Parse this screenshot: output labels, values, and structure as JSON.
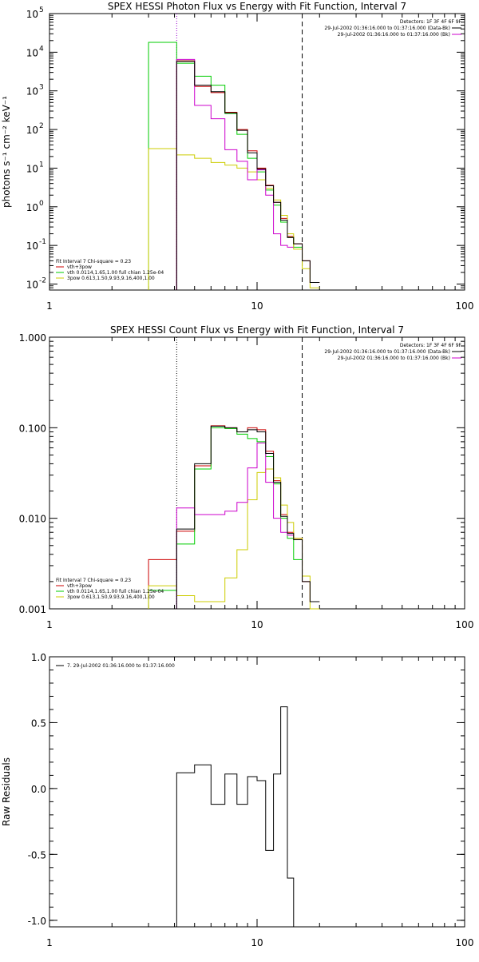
{
  "chart_data": [
    {
      "type": "line",
      "title": "SPEX HESSI Photon Flux vs Energy with Fit Function, Interval 7",
      "xlabel": "",
      "ylabel": "photons s⁻¹ cm⁻² keV⁻¹",
      "x_scale": "log",
      "y_scale": "log",
      "xlim": [
        1,
        100
      ],
      "ylim": [
        0.007,
        100000
      ],
      "x_ticks": [
        {
          "v": 1,
          "label": "1"
        },
        {
          "v": 10,
          "label": "10"
        },
        {
          "v": 100,
          "label": "100"
        }
      ],
      "y_ticks": [
        {
          "v": 0.01,
          "base": "10",
          "exp": "-2"
        },
        {
          "v": 0.1,
          "base": "10",
          "exp": "-1"
        },
        {
          "v": 1,
          "base": "10",
          "exp": "0"
        },
        {
          "v": 10,
          "base": "10",
          "exp": "1"
        },
        {
          "v": 100,
          "base": "10",
          "exp": "2"
        },
        {
          "v": 1000,
          "base": "10",
          "exp": "3"
        },
        {
          "v": 10000,
          "base": "10",
          "exp": "4"
        },
        {
          "v": 100000,
          "base": "10",
          "exp": "5"
        }
      ],
      "vlines": [
        {
          "x": 4.1,
          "style": "dotted",
          "color": "#9900cc"
        },
        {
          "x": 16.5,
          "style": "dashed",
          "color": "#000000"
        }
      ],
      "legend_right": {
        "header": "Detectors: 1F 3F 4F 6F 9F",
        "entries": [
          {
            "text": "29-Jul-2002 01:36:16.000 to 01:37:16.000 (Data-Bk)",
            "color": "#000000"
          },
          {
            "text": "29-Jul-2002 01:36:16.000 to 01:37:16.000 (Bk)",
            "color": "#cc00cc"
          }
        ]
      },
      "legend_left": {
        "header": "Fit Interval  7    Chi-square = 0.23",
        "entries": [
          {
            "text": "vth+3pow",
            "color": "#cc0000"
          },
          {
            "text": "vth 0.0114,1.65,1.00  full chian 1.25e-04",
            "color": "#00cc00"
          },
          {
            "text": "3pow 0.613,1.50,9.93,9.16,400,1.00",
            "color": "#cccc00"
          }
        ]
      },
      "edges": [
        3.0,
        4.1,
        5.0,
        6.0,
        7.0,
        8.0,
        9.0,
        10.0,
        11.0,
        12.0,
        13.0,
        14.0,
        15.0,
        16.5,
        18.0,
        20.0
      ],
      "series": [
        {
          "name": "vth+3pow",
          "color": "#cc0000",
          "values": [
            null,
            6000,
            1300,
            900,
            280,
            100,
            28,
            10,
            3.6,
            1.3,
            0.5,
            0.17,
            0.11,
            0.04,
            0.011
          ]
        },
        {
          "name": "vth 0.0114,1.65,1.00  full chian 1.25e-04",
          "color": "#00cc00",
          "values": [
            18000,
            5200,
            2400,
            1400,
            260,
            75,
            18,
            8,
            2.7,
            1.1,
            0.4,
            0.16,
            0.09,
            null,
            null
          ]
        },
        {
          "name": "3pow 0.613,1.50,9.93,9.16,400,1.00",
          "color": "#cccc00",
          "values": [
            32,
            22,
            18,
            14,
            12,
            10,
            8,
            5,
            3,
            1.5,
            0.6,
            0.2,
            0.08,
            0.025,
            0.008
          ]
        },
        {
          "color": "#cc00cc",
          "values": [
            null,
            6500,
            420,
            190,
            30,
            15,
            5,
            9,
            2,
            0.2,
            0.1,
            0.09,
            null,
            null,
            null
          ]
        },
        {
          "color": "#000000",
          "values": [
            null,
            5800,
            1400,
            950,
            270,
            95,
            25,
            9.5,
            3.5,
            1.3,
            0.45,
            0.16,
            0.11,
            0.04,
            0.011
          ]
        }
      ]
    },
    {
      "type": "line",
      "title": "SPEX HESSI Count Flux vs Energy with Fit Function, Interval 7",
      "xlabel": "",
      "ylabel": "",
      "x_scale": "log",
      "y_scale": "log",
      "xlim": [
        1,
        100
      ],
      "ylim": [
        0.001,
        1.0
      ],
      "x_ticks": [
        {
          "v": 1,
          "label": "1"
        },
        {
          "v": 10,
          "label": "10"
        },
        {
          "v": 100,
          "label": "100"
        }
      ],
      "y_ticks": [
        {
          "v": 0.001,
          "label": "0.001"
        },
        {
          "v": 0.01,
          "label": "0.010"
        },
        {
          "v": 0.1,
          "label": "0.100"
        },
        {
          "v": 1,
          "label": "1.000"
        }
      ],
      "vlines": [
        {
          "x": 4.1,
          "style": "dotted",
          "color": "#000000"
        },
        {
          "x": 16.5,
          "style": "dashed",
          "color": "#000000"
        }
      ],
      "legend_right": {
        "header": "Detectors: 1F 3F 4F 6F 9F",
        "entries": [
          {
            "text": "29-Jul-2002 01:36:16.000 to 01:37:16.000 (Data-Bk)",
            "color": "#000000"
          },
          {
            "text": "29-Jul-2002 01:36:16.000 to 01:37:16.000 (Bk)",
            "color": "#cc00cc"
          }
        ]
      },
      "legend_left": {
        "header": "Fit Interval  7    Chi-square = 0.23",
        "entries": [
          {
            "text": "vth+3pow",
            "color": "#cc0000"
          },
          {
            "text": "vth 0.0114,1.65,1.00  full chian 1.25e-04",
            "color": "#00cc00"
          },
          {
            "text": "3pow 0.613,1.50,9.93,9.16,400,1.00",
            "color": "#cccc00"
          }
        ]
      },
      "edges": [
        3.0,
        4.1,
        5.0,
        6.0,
        7.0,
        8.0,
        9.0,
        10.0,
        11.0,
        12.0,
        13.0,
        14.0,
        15.0,
        16.5,
        18.0,
        20.0
      ],
      "series": [
        {
          "name": "vth+3pow",
          "color": "#cc0000",
          "values": [
            0.0035,
            0.0072,
            0.038,
            0.105,
            0.1,
            0.09,
            0.1,
            0.095,
            0.055,
            0.026,
            0.011,
            0.007,
            0.006,
            0.002,
            0.0012
          ]
        },
        {
          "name": "vth 0.0114,1.65,1.00  full chian 1.25e-04",
          "color": "#00cc00",
          "values": [
            0.0016,
            0.0052,
            0.035,
            0.1,
            0.098,
            0.085,
            0.076,
            0.07,
            0.048,
            0.024,
            0.01,
            0.006,
            0.0035,
            null,
            null
          ]
        },
        {
          "name": "3pow 0.613,1.50,9.93,9.16,400,1.00",
          "color": "#cccc00",
          "values": [
            0.0018,
            0.0014,
            0.0012,
            0.0012,
            0.0022,
            0.0045,
            0.016,
            0.032,
            0.035,
            0.028,
            0.014,
            0.009,
            0.006,
            0.0023,
            0.001
          ]
        },
        {
          "color": "#cc00cc",
          "values": [
            null,
            0.013,
            0.011,
            0.011,
            0.012,
            0.015,
            0.036,
            0.068,
            0.025,
            0.01,
            0.007,
            0.0065,
            null,
            null,
            null
          ]
        },
        {
          "color": "#000000",
          "values": [
            null,
            0.0076,
            0.04,
            0.104,
            0.1,
            0.09,
            0.095,
            0.09,
            0.052,
            0.025,
            0.0105,
            0.0068,
            0.0058,
            0.002,
            0.0012
          ]
        }
      ]
    },
    {
      "type": "line",
      "title": "",
      "xlabel": "",
      "ylabel": "Raw Residuals",
      "x_scale": "log",
      "y_scale": "linear",
      "xlim": [
        1,
        100
      ],
      "ylim": [
        -1.05,
        1.0
      ],
      "x_ticks": [
        {
          "v": 1,
          "label": "1"
        },
        {
          "v": 10,
          "label": "10"
        },
        {
          "v": 100,
          "label": "100"
        }
      ],
      "y_ticks": [
        {
          "v": -1.0,
          "label": "-1.0"
        },
        {
          "v": -0.5,
          "label": "-0.5"
        },
        {
          "v": 0.0,
          "label": "0.0"
        },
        {
          "v": 0.5,
          "label": "0.5"
        },
        {
          "v": 1.0,
          "label": "1.0"
        }
      ],
      "vlines": [],
      "legend_left": {
        "header": "",
        "entries": [
          {
            "text": "7. 29-Jul-2002 01:36:16.000 to 01:37:16.000",
            "color": "#000000"
          }
        ]
      },
      "edges": [
        4.1,
        5.0,
        6.0,
        7.0,
        8.0,
        9.0,
        10.0,
        11.0,
        12.0,
        13.0,
        14.0,
        15.0,
        16.5
      ],
      "series": [
        {
          "name": "7. 29-Jul-2002 01:36:16.000 to 01:37:16.000",
          "color": "#000000",
          "values": [
            0.12,
            0.18,
            -0.12,
            0.11,
            -0.12,
            0.09,
            0.06,
            -0.47,
            0.11,
            0.62,
            -0.68,
            -1.05
          ]
        }
      ],
      "drop_first_to": -1.05
    }
  ]
}
